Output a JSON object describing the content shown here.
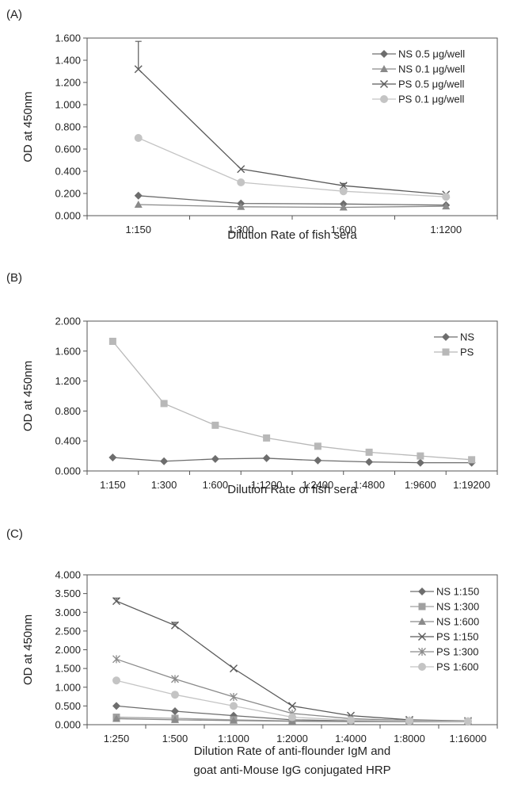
{
  "chart_data": [
    {
      "panel_label": "(A)",
      "type": "line",
      "categories": [
        "1:150",
        "1:300",
        "1:600",
        "1:1200"
      ],
      "ylim": [
        0,
        1.6
      ],
      "yticks": [
        "0.000",
        "0.200",
        "0.400",
        "0.600",
        "0.800",
        "1.000",
        "1.200",
        "1.400",
        "1.600"
      ],
      "ylabel": "OD at 450nm",
      "xlabel": "Dilution Rate of fish sera",
      "legend_position": "top-right",
      "grid": false,
      "series": [
        {
          "name": "NS 0.5 μg/well",
          "marker": "diamond",
          "color": "#6d6d6d",
          "values": [
            0.18,
            0.11,
            0.105,
            0.095
          ]
        },
        {
          "name": "NS 0.1 μg/well",
          "marker": "triangle",
          "color": "#8a8a8a",
          "values": [
            0.1,
            0.08,
            0.075,
            0.085
          ]
        },
        {
          "name": "PS 0.5 μg/well",
          "marker": "x",
          "color": "#5a5a5a",
          "values": [
            1.32,
            0.42,
            0.27,
            0.19
          ],
          "error": [
            0.25,
            0,
            0.02,
            0
          ]
        },
        {
          "name": "PS 0.1 μg/well",
          "marker": "circle",
          "color": "#c4c4c4",
          "values": [
            0.7,
            0.3,
            0.22,
            0.17
          ]
        }
      ]
    },
    {
      "panel_label": "(B)",
      "type": "line",
      "categories": [
        "1:150",
        "1:300",
        "1:600",
        "1:1200",
        "1:2400",
        "1:4800",
        "1:9600",
        "1:19200"
      ],
      "ylim": [
        0,
        2.0
      ],
      "yticks": [
        "0.000",
        "0.400",
        "0.800",
        "1.200",
        "1.600",
        "2.000"
      ],
      "ylabel": "OD at 450nm",
      "xlabel": "Dilution Rate of  fish sera",
      "legend_position": "top-right",
      "grid": false,
      "series": [
        {
          "name": "NS",
          "marker": "diamond",
          "color": "#6d6d6d",
          "values": [
            0.18,
            0.13,
            0.16,
            0.17,
            0.14,
            0.12,
            0.11,
            0.11
          ]
        },
        {
          "name": "PS",
          "marker": "square",
          "color": "#b8b8b8",
          "values": [
            1.73,
            0.9,
            0.61,
            0.44,
            0.33,
            0.25,
            0.2,
            0.15
          ]
        }
      ]
    },
    {
      "panel_label": "(C)",
      "type": "line",
      "categories": [
        "1:250",
        "1:500",
        "1:1000",
        "1:2000",
        "1:4000",
        "1:8000",
        "1:16000"
      ],
      "ylim": [
        0,
        4.0
      ],
      "yticks": [
        "0.000",
        "0.500",
        "1.000",
        "1.500",
        "2.000",
        "2.500",
        "3.000",
        "3.500",
        "4.000"
      ],
      "ylabel": "OD at 450nm",
      "xlabel": "Dilution Rate of anti-flounder IgM and\ngoat anti-Mouse IgG conjugated HRP",
      "legend_position": "top-right",
      "grid": false,
      "series": [
        {
          "name": "NS 1:150",
          "marker": "diamond",
          "color": "#6d6d6d",
          "values": [
            0.5,
            0.36,
            0.24,
            0.13,
            0.1,
            0.09,
            0.08
          ]
        },
        {
          "name": "NS 1:300",
          "marker": "square",
          "color": "#a0a0a0",
          "values": [
            0.2,
            0.17,
            0.13,
            0.1,
            0.09,
            0.08,
            0.08
          ]
        },
        {
          "name": "NS 1:600",
          "marker": "triangle",
          "color": "#8a8a8a",
          "values": [
            0.16,
            0.13,
            0.11,
            0.09,
            0.08,
            0.08,
            0.08
          ]
        },
        {
          "name": "PS 1:150",
          "marker": "x",
          "color": "#5a5a5a",
          "values": [
            3.3,
            2.65,
            1.5,
            0.5,
            0.24,
            0.13,
            0.1
          ],
          "error": [
            0.08,
            0.08,
            0,
            0,
            0,
            0,
            0
          ]
        },
        {
          "name": "PS 1:300",
          "marker": "star",
          "color": "#8a8a8a",
          "values": [
            1.75,
            1.22,
            0.74,
            0.3,
            0.16,
            0.11,
            0.09
          ]
        },
        {
          "name": "PS 1:600",
          "marker": "circle",
          "color": "#c4c4c4",
          "values": [
            1.18,
            0.8,
            0.5,
            0.2,
            0.12,
            0.1,
            0.09
          ]
        }
      ]
    }
  ]
}
